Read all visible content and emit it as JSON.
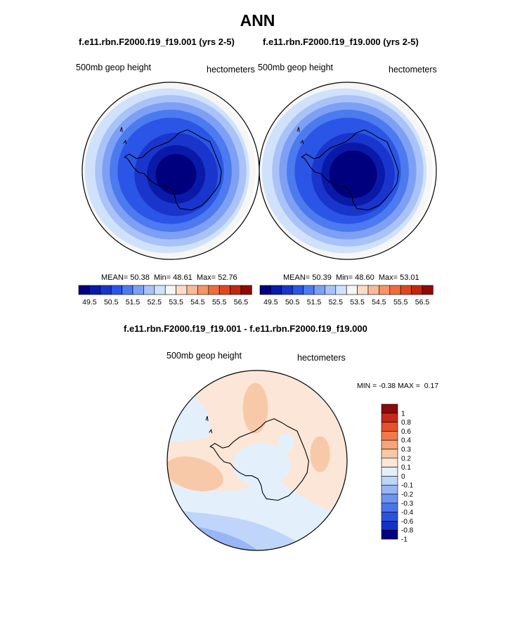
{
  "title": "ANN",
  "colors": {
    "abs_levels": [
      "#00007f",
      "#0a1aa8",
      "#1a35cc",
      "#2a55e6",
      "#4c7aef",
      "#7da0f5",
      "#a9c3f8",
      "#d0e2fb",
      "#f6f6f4",
      "#fcdcc8",
      "#f9bb97",
      "#f59468",
      "#ef6c3c",
      "#e0461f",
      "#bf2710",
      "#8f0a05"
    ],
    "diff_levels": [
      "#00007f",
      "#1433c4",
      "#2b53e0",
      "#4a74ea",
      "#6f94f0",
      "#98b6f5",
      "#bfd6fa",
      "#e3f0fc",
      "#fbe6d7",
      "#f8c9a8",
      "#f5a47c",
      "#f07a4c",
      "#e6502a",
      "#c4291a",
      "#8b0a0a"
    ]
  },
  "chart_data": [
    {
      "type": "heatmap",
      "projection": "south-polar-stereographic",
      "title": "f.e11.rbn.F2000.f19_f19.001 (yrs 2-5)",
      "variable": "500mb geop height",
      "units": "hectometers",
      "stats": {
        "mean_label": "MEAN=",
        "mean": "50.38",
        "min_label": "Min=",
        "min": "48.61",
        "max_label": "Max=",
        "max": "52.76"
      },
      "colorbar_ticks": [
        "49.5",
        "50.5",
        "51.5",
        "52.5",
        "53.5",
        "54.5",
        "55.5",
        "56.5"
      ],
      "rings": [
        {
          "value_level": 8,
          "extent": 1.0
        },
        {
          "value_level": 7,
          "extent": 0.93
        },
        {
          "value_level": 6,
          "extent": 0.855
        },
        {
          "value_level": 5,
          "extent": 0.775
        },
        {
          "value_level": 4,
          "extent": 0.69
        },
        {
          "value_level": 3,
          "extent": 0.6
        },
        {
          "value_level": 2,
          "extent": 0.47
        },
        {
          "value_level": 1,
          "extent": 0.33
        },
        {
          "value_level": 0,
          "extent": 0.23
        }
      ]
    },
    {
      "type": "heatmap",
      "projection": "south-polar-stereographic",
      "title": "f.e11.rbn.F2000.f19_f19.000 (yrs 2-5)",
      "variable": "500mb geop height",
      "units": "hectometers",
      "stats": {
        "mean_label": "MEAN=",
        "mean": "50.39",
        "min_label": "Min=",
        "min": "48.60",
        "max_label": "Max=",
        "max": "53.01"
      },
      "colorbar_ticks": [
        "49.5",
        "50.5",
        "51.5",
        "52.5",
        "53.5",
        "54.5",
        "55.5",
        "56.5"
      ],
      "rings": [
        {
          "value_level": 8,
          "extent": 1.0
        },
        {
          "value_level": 7,
          "extent": 0.93
        },
        {
          "value_level": 6,
          "extent": 0.855
        },
        {
          "value_level": 5,
          "extent": 0.775
        },
        {
          "value_level": 4,
          "extent": 0.69
        },
        {
          "value_level": 3,
          "extent": 0.6
        },
        {
          "value_level": 2,
          "extent": 0.47
        },
        {
          "value_level": 1,
          "extent": 0.36
        },
        {
          "value_level": 0,
          "extent": 0.27
        }
      ]
    },
    {
      "type": "heatmap",
      "projection": "south-polar-stereographic",
      "title": "f.e11.rbn.F2000.f19_f19.001 - f.e11.rbn.F2000.f19_f19.000",
      "variable": "500mb geop height",
      "units": "hectometers",
      "stats": {
        "min_label": "MIN =",
        "min": "-0.38",
        "max_label": "MAX =",
        "max": "0.17"
      },
      "colorbar_ticks": [
        "1",
        "0.8",
        "0.6",
        "0.4",
        "0.3",
        "0.2",
        "0.1",
        "0",
        "-0.1",
        "-0.2",
        "-0.3",
        "-0.4",
        "-0.6",
        "-0.8",
        "-1"
      ]
    }
  ]
}
